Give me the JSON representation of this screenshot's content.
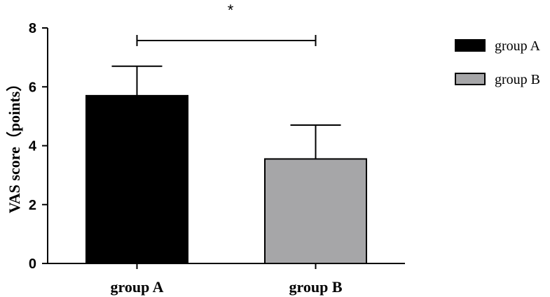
{
  "chart_data": {
    "type": "bar",
    "categories": [
      "group A",
      "group B"
    ],
    "values": [
      5.7,
      3.55
    ],
    "error_upper": [
      6.7,
      4.7
    ],
    "colors": [
      "#000000",
      "#a6a6a8"
    ],
    "ylabel": "VAS score（points）",
    "xlabel": "",
    "ylim": [
      0,
      8
    ],
    "yticks": [
      0,
      2,
      4,
      6,
      8
    ],
    "legend": {
      "position": "right",
      "entries": [
        {
          "label": "group A",
          "color": "#000000"
        },
        {
          "label": "group B",
          "color": "#a6a6a8"
        }
      ]
    },
    "significance": {
      "between": [
        "group A",
        "group B"
      ],
      "label": "*"
    },
    "grid": false
  }
}
